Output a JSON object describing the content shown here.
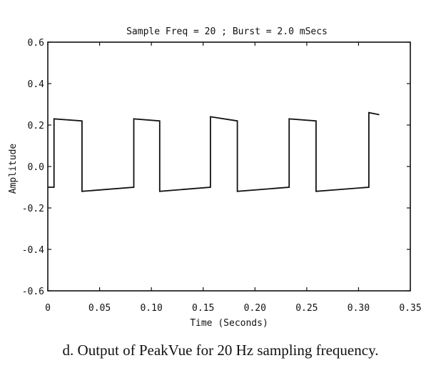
{
  "chart_data": {
    "type": "line",
    "title": "Sample Freq = 20 ; Burst = 2.0 mSecs",
    "xlabel": "Time (Seconds)",
    "ylabel": "Amplitude",
    "xlim": [
      0,
      0.35
    ],
    "ylim": [
      -0.6,
      0.6
    ],
    "x_ticks": [
      0,
      0.05,
      0.1,
      0.15,
      0.2,
      0.25,
      0.3,
      0.35
    ],
    "x_tick_labels": [
      "0",
      "0.05",
      "0.10",
      "0.15",
      "0.20",
      "0.25",
      "0.30",
      "0.35"
    ],
    "y_ticks": [
      0.6,
      0.4,
      0.2,
      0.0,
      -0.2,
      -0.4,
      -0.6
    ],
    "y_tick_labels": [
      "0.6",
      "0.4",
      "0.2",
      "0.0",
      "-0.2",
      "-0.4",
      "-0.6"
    ],
    "grid": false,
    "series": [
      {
        "color": "#111111",
        "x": [
          0.0,
          0.006,
          0.006,
          0.033,
          0.033,
          0.083,
          0.083,
          0.108,
          0.108,
          0.157,
          0.157,
          0.183,
          0.183,
          0.233,
          0.233,
          0.259,
          0.259,
          0.31,
          0.31,
          0.32
        ],
        "y": [
          -0.1,
          -0.1,
          0.23,
          0.22,
          -0.12,
          -0.1,
          0.23,
          0.22,
          -0.12,
          -0.1,
          0.24,
          0.22,
          -0.12,
          -0.1,
          0.23,
          0.22,
          -0.12,
          -0.1,
          0.26,
          0.25
        ]
      }
    ]
  },
  "caption": "d.  Output of PeakVue for 20 Hz sampling frequency."
}
